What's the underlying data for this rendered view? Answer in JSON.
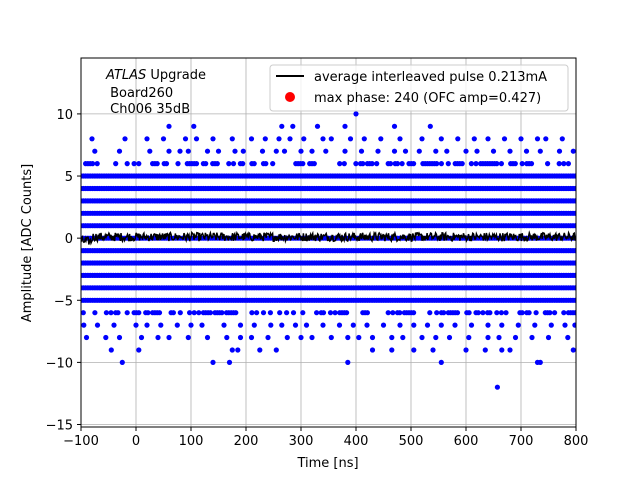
{
  "chart_data": {
    "type": "scatter",
    "xlabel": "Time [ns]",
    "ylabel": "Amplitude [ADC Counts]",
    "xlim": [
      -100,
      800
    ],
    "ylim": [
      -15.2,
      14.5
    ],
    "x_ticks": [
      -100,
      0,
      100,
      200,
      300,
      400,
      500,
      600,
      700,
      800
    ],
    "y_ticks": [
      -15,
      -10,
      -5,
      0,
      5,
      10
    ],
    "grid": true,
    "legend_placement": "top-right",
    "annotation": {
      "lines": [
        "ATLAS Upgrade",
        " Board260",
        " Ch006 35dB"
      ],
      "italic_word": "ATLAS",
      "rest_first_line": " Upgrade"
    },
    "series": [
      {
        "name": "average interleaved pulse 0.213mA",
        "kind": "line",
        "color": "#000000",
        "x_range": [
          -100,
          800
        ],
        "description_values": {
          "baseline": 0.1,
          "noise_amplitude": 0.35
        }
      },
      {
        "name": "max phase: 240 (OFC amp=0.427)",
        "kind": "marker",
        "color": "#ff0000",
        "x": [],
        "y": []
      },
      {
        "kind": "scatter",
        "color": "#0000ff",
        "dense_levels": [
          -5,
          -4,
          -3,
          -2,
          -1,
          0,
          1,
          2,
          3,
          4,
          5
        ],
        "mid_levels": [
          -6,
          6
        ],
        "sparse_levels": {
          "7": [
            -75,
            -30,
            25,
            60,
            80,
            95,
            130,
            150,
            180,
            195,
            230,
            255,
            270,
            300,
            320,
            345,
            380,
            410,
            440,
            470,
            490,
            515,
            545,
            565,
            600,
            620,
            650,
            680,
            710,
            735,
            770,
            795
          ],
          "-7": [
            -95,
            -70,
            -40,
            0,
            20,
            45,
            75,
            100,
            120,
            160,
            190,
            215,
            245,
            265,
            290,
            310,
            340,
            370,
            395,
            420,
            450,
            480,
            505,
            530,
            555,
            580,
            610,
            640,
            665,
            695,
            725,
            755,
            780,
            798
          ],
          "8": [
            -80,
            -20,
            20,
            50,
            90,
            110,
            140,
            175,
            210,
            235,
            260,
            280,
            305,
            340,
            355,
            390,
            415,
            445,
            480,
            520,
            555,
            585,
            615,
            640,
            670,
            700,
            730,
            745,
            775
          ],
          "-8": [
            -90,
            -55,
            -30,
            10,
            40,
            60,
            95,
            130,
            165,
            190,
            210,
            240,
            275,
            300,
            320,
            355,
            385,
            405,
            430,
            465,
            485,
            520,
            545,
            570,
            605,
            640,
            660,
            690,
            720,
            750,
            785
          ],
          "9": [
            60,
            105,
            265,
            285,
            330,
            380,
            470,
            535
          ],
          "-9": [
            -45,
            5,
            175,
            185,
            225,
            255,
            430,
            465,
            505,
            540,
            600,
            635,
            665,
            680,
            795
          ],
          "10": [
            400
          ],
          "-10": [
            -25,
            140,
            170,
            385,
            555,
            730,
            735
          ],
          "-12": [
            657
          ]
        }
      }
    ]
  }
}
